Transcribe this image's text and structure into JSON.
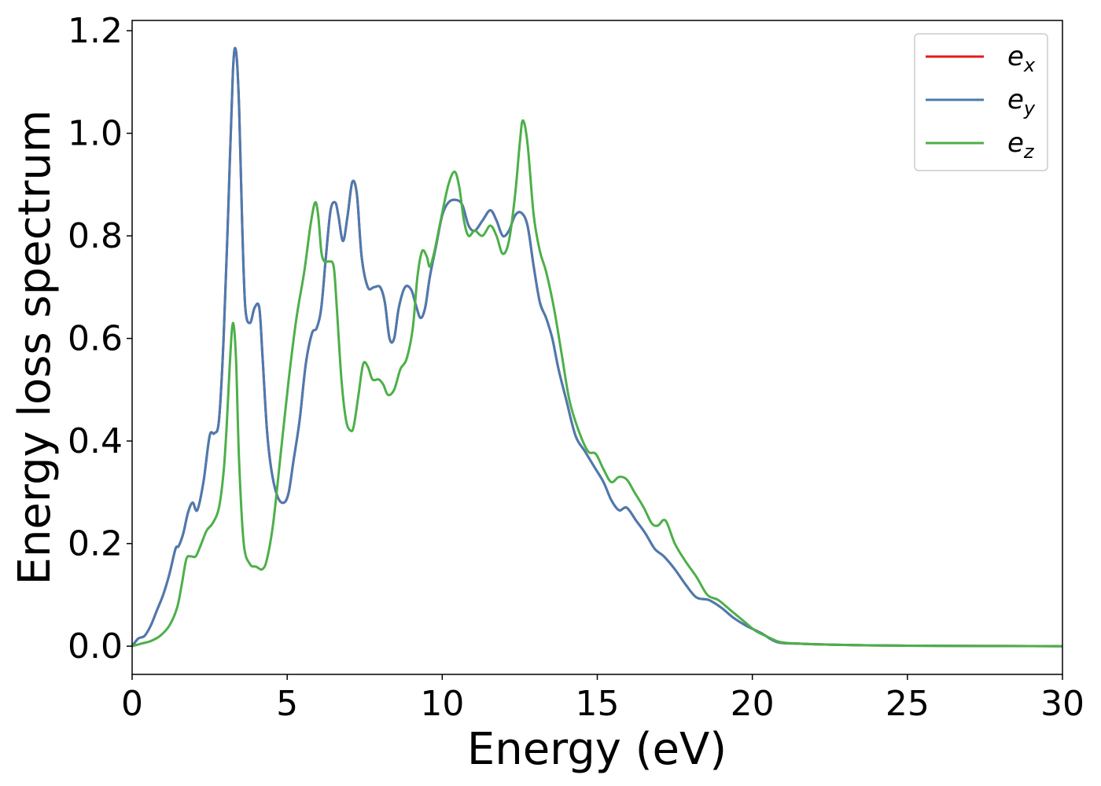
{
  "chart_data": {
    "type": "line",
    "xlabel": "Energy (eV)",
    "ylabel": "Energy loss spectrum",
    "xlim": [
      0,
      30
    ],
    "ylim": [
      -0.055,
      1.22
    ],
    "xticks": [
      0,
      5,
      10,
      15,
      20,
      25,
      30
    ],
    "xtick_labels": [
      "0",
      "5",
      "10",
      "15",
      "20",
      "25",
      "30"
    ],
    "yticks": [
      0.0,
      0.2,
      0.4,
      0.6,
      0.8,
      1.0,
      1.2
    ],
    "ytick_labels": [
      "0.0",
      "0.2",
      "0.4",
      "0.6",
      "0.8",
      "1.0",
      "1.2"
    ],
    "grid": false,
    "legend_position": "top-right",
    "series": [
      {
        "name": "e_x",
        "label_base": "e",
        "label_sub": "x",
        "color": "#e41a1c",
        "x": [
          0,
          0.2,
          0.4,
          0.6,
          0.8,
          1.0,
          1.2,
          1.4,
          1.5,
          1.65,
          1.8,
          1.95,
          2.1,
          2.3,
          2.5,
          2.65,
          2.8,
          2.95,
          3.1,
          3.25,
          3.35,
          3.45,
          3.55,
          3.65,
          3.8,
          3.95,
          4.1,
          4.2,
          4.35,
          4.5,
          4.7,
          4.9,
          5.05,
          5.2,
          5.4,
          5.6,
          5.8,
          5.95,
          6.1,
          6.25,
          6.4,
          6.55,
          6.65,
          6.8,
          6.95,
          7.1,
          7.25,
          7.4,
          7.6,
          7.8,
          8.0,
          8.15,
          8.3,
          8.45,
          8.6,
          8.8,
          9.0,
          9.15,
          9.3,
          9.45,
          9.6,
          9.8,
          10.0,
          10.2,
          10.45,
          10.65,
          10.85,
          11.05,
          11.3,
          11.55,
          11.75,
          11.95,
          12.15,
          12.35,
          12.55,
          12.75,
          12.95,
          13.15,
          13.35,
          13.55,
          13.75,
          14.0,
          14.3,
          14.6,
          14.9,
          15.2,
          15.45,
          15.7,
          15.95,
          16.25,
          16.55,
          16.85,
          17.15,
          17.5,
          17.85,
          18.2,
          18.6,
          19.0,
          19.4,
          19.8,
          20.3,
          20.8,
          21.5,
          22.5,
          25,
          30
        ],
        "y": [
          0.0,
          0.015,
          0.02,
          0.04,
          0.07,
          0.1,
          0.14,
          0.19,
          0.195,
          0.22,
          0.26,
          0.28,
          0.265,
          0.32,
          0.41,
          0.415,
          0.44,
          0.6,
          0.85,
          1.12,
          1.16,
          1.05,
          0.82,
          0.66,
          0.63,
          0.66,
          0.66,
          0.57,
          0.42,
          0.34,
          0.29,
          0.28,
          0.3,
          0.36,
          0.44,
          0.55,
          0.61,
          0.62,
          0.66,
          0.76,
          0.85,
          0.865,
          0.84,
          0.79,
          0.84,
          0.905,
          0.88,
          0.76,
          0.7,
          0.7,
          0.7,
          0.67,
          0.6,
          0.6,
          0.66,
          0.7,
          0.695,
          0.665,
          0.64,
          0.66,
          0.72,
          0.78,
          0.84,
          0.865,
          0.87,
          0.86,
          0.82,
          0.81,
          0.83,
          0.85,
          0.83,
          0.8,
          0.81,
          0.84,
          0.845,
          0.82,
          0.74,
          0.67,
          0.64,
          0.6,
          0.54,
          0.48,
          0.41,
          0.38,
          0.35,
          0.32,
          0.285,
          0.265,
          0.27,
          0.245,
          0.22,
          0.19,
          0.175,
          0.15,
          0.12,
          0.095,
          0.09,
          0.075,
          0.055,
          0.04,
          0.025,
          0.008,
          0.005,
          0.003,
          0.001,
          0.0
        ]
      },
      {
        "name": "e_y",
        "label_base": "e",
        "label_sub": "y",
        "color": "#4a7bb0",
        "x": [
          0,
          0.2,
          0.4,
          0.6,
          0.8,
          1.0,
          1.2,
          1.4,
          1.5,
          1.65,
          1.8,
          1.95,
          2.1,
          2.3,
          2.5,
          2.65,
          2.8,
          2.95,
          3.1,
          3.25,
          3.35,
          3.45,
          3.55,
          3.65,
          3.8,
          3.95,
          4.1,
          4.2,
          4.35,
          4.5,
          4.7,
          4.9,
          5.05,
          5.2,
          5.4,
          5.6,
          5.8,
          5.95,
          6.1,
          6.25,
          6.4,
          6.55,
          6.65,
          6.8,
          6.95,
          7.1,
          7.25,
          7.4,
          7.6,
          7.8,
          8.0,
          8.15,
          8.3,
          8.45,
          8.6,
          8.8,
          9.0,
          9.15,
          9.3,
          9.45,
          9.6,
          9.8,
          10.0,
          10.2,
          10.45,
          10.65,
          10.85,
          11.05,
          11.3,
          11.55,
          11.75,
          11.95,
          12.15,
          12.35,
          12.55,
          12.75,
          12.95,
          13.15,
          13.35,
          13.55,
          13.75,
          14.0,
          14.3,
          14.6,
          14.9,
          15.2,
          15.45,
          15.7,
          15.95,
          16.25,
          16.55,
          16.85,
          17.15,
          17.5,
          17.85,
          18.2,
          18.6,
          19.0,
          19.4,
          19.8,
          20.3,
          20.8,
          21.5,
          22.5,
          25,
          30
        ],
        "y": [
          0.0,
          0.015,
          0.02,
          0.04,
          0.07,
          0.1,
          0.14,
          0.19,
          0.195,
          0.22,
          0.26,
          0.28,
          0.265,
          0.32,
          0.41,
          0.415,
          0.44,
          0.6,
          0.85,
          1.12,
          1.16,
          1.05,
          0.82,
          0.66,
          0.63,
          0.66,
          0.66,
          0.57,
          0.42,
          0.34,
          0.29,
          0.28,
          0.3,
          0.36,
          0.44,
          0.55,
          0.61,
          0.62,
          0.66,
          0.76,
          0.85,
          0.865,
          0.84,
          0.79,
          0.84,
          0.905,
          0.88,
          0.76,
          0.7,
          0.7,
          0.7,
          0.67,
          0.6,
          0.6,
          0.66,
          0.7,
          0.695,
          0.665,
          0.64,
          0.66,
          0.72,
          0.78,
          0.84,
          0.865,
          0.87,
          0.86,
          0.82,
          0.81,
          0.83,
          0.85,
          0.83,
          0.8,
          0.81,
          0.84,
          0.845,
          0.82,
          0.74,
          0.67,
          0.64,
          0.6,
          0.54,
          0.48,
          0.41,
          0.38,
          0.35,
          0.32,
          0.285,
          0.265,
          0.27,
          0.245,
          0.22,
          0.19,
          0.175,
          0.15,
          0.12,
          0.095,
          0.09,
          0.075,
          0.055,
          0.04,
          0.025,
          0.008,
          0.005,
          0.003,
          0.001,
          0.0
        ]
      },
      {
        "name": "e_z",
        "label_base": "e",
        "label_sub": "z",
        "color": "#4daf4a",
        "x": [
          0,
          0.3,
          0.6,
          0.9,
          1.2,
          1.45,
          1.6,
          1.75,
          1.9,
          2.05,
          2.2,
          2.4,
          2.6,
          2.8,
          2.95,
          3.05,
          3.15,
          3.25,
          3.35,
          3.45,
          3.6,
          3.8,
          4.0,
          4.2,
          4.35,
          4.55,
          4.8,
          5.05,
          5.3,
          5.55,
          5.75,
          5.9,
          6.0,
          6.1,
          6.2,
          6.35,
          6.5,
          6.6,
          6.75,
          6.9,
          7.05,
          7.15,
          7.3,
          7.45,
          7.6,
          7.75,
          7.95,
          8.1,
          8.25,
          8.45,
          8.65,
          8.85,
          9.05,
          9.2,
          9.35,
          9.5,
          9.6,
          9.75,
          9.95,
          10.2,
          10.4,
          10.55,
          10.7,
          10.85,
          11.05,
          11.3,
          11.55,
          11.75,
          11.95,
          12.15,
          12.35,
          12.5,
          12.6,
          12.75,
          12.95,
          13.15,
          13.35,
          13.6,
          13.85,
          14.1,
          14.4,
          14.7,
          14.95,
          15.2,
          15.45,
          15.7,
          15.95,
          16.2,
          16.5,
          16.75,
          16.95,
          17.2,
          17.5,
          17.85,
          18.2,
          18.55,
          18.9,
          19.3,
          19.7,
          20.1,
          20.5,
          20.9,
          21.5,
          22.5,
          25,
          30
        ],
        "y": [
          0.0,
          0.005,
          0.01,
          0.02,
          0.04,
          0.075,
          0.12,
          0.17,
          0.175,
          0.175,
          0.195,
          0.225,
          0.24,
          0.27,
          0.34,
          0.43,
          0.55,
          0.63,
          0.56,
          0.36,
          0.2,
          0.16,
          0.155,
          0.15,
          0.17,
          0.24,
          0.38,
          0.52,
          0.64,
          0.73,
          0.82,
          0.865,
          0.84,
          0.77,
          0.75,
          0.75,
          0.74,
          0.66,
          0.52,
          0.44,
          0.42,
          0.43,
          0.49,
          0.55,
          0.545,
          0.52,
          0.52,
          0.51,
          0.49,
          0.5,
          0.54,
          0.56,
          0.62,
          0.72,
          0.77,
          0.76,
          0.74,
          0.77,
          0.83,
          0.9,
          0.925,
          0.895,
          0.83,
          0.8,
          0.81,
          0.8,
          0.82,
          0.8,
          0.765,
          0.79,
          0.88,
          0.98,
          1.025,
          0.98,
          0.84,
          0.77,
          0.73,
          0.66,
          0.57,
          0.48,
          0.42,
          0.38,
          0.375,
          0.345,
          0.32,
          0.33,
          0.325,
          0.3,
          0.27,
          0.24,
          0.235,
          0.245,
          0.2,
          0.165,
          0.135,
          0.1,
          0.09,
          0.07,
          0.05,
          0.03,
          0.018,
          0.008,
          0.005,
          0.003,
          0.001,
          0.0
        ]
      }
    ]
  }
}
